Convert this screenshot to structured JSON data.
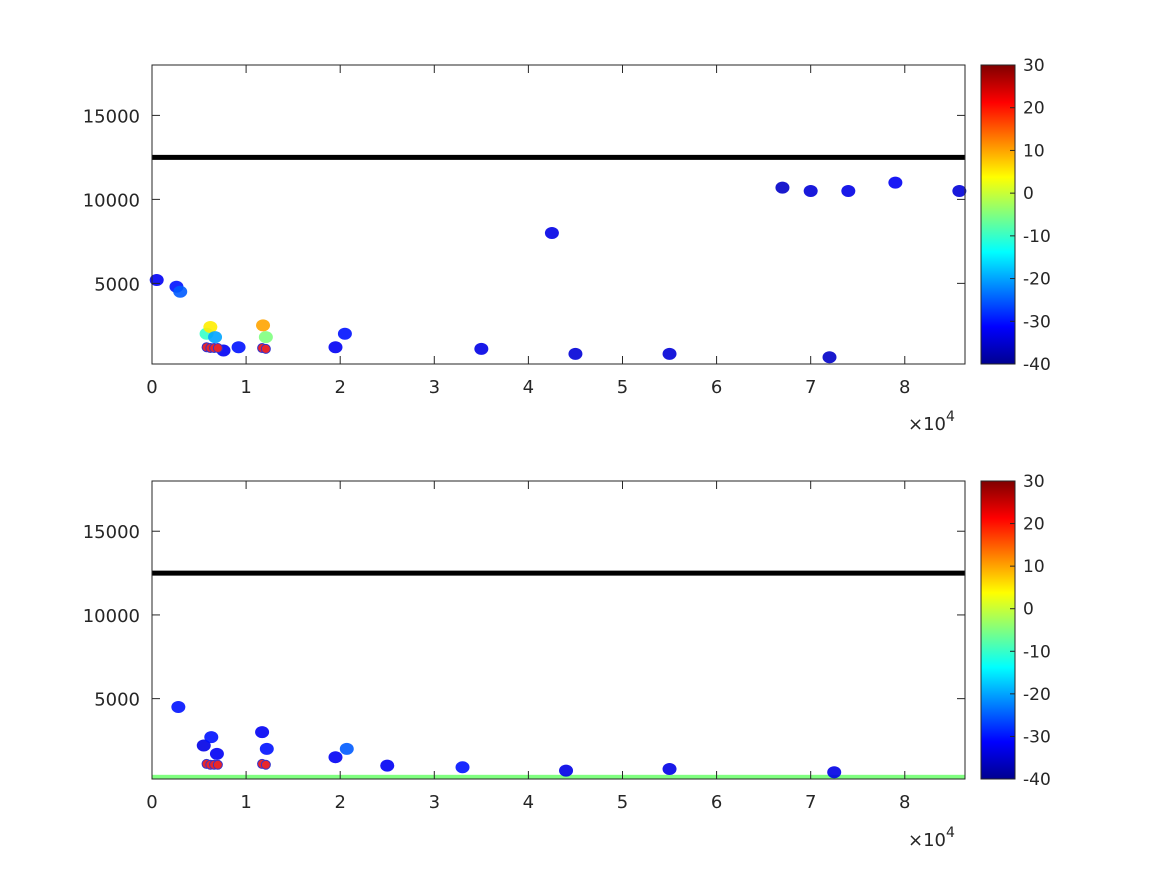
{
  "chart_data": [
    {
      "type": "heatmap",
      "panel": "top",
      "xlim": [
        0,
        86400
      ],
      "ylim": [
        200,
        18000
      ],
      "x_ticks": [
        "0",
        "1",
        "2",
        "3",
        "4",
        "5",
        "6",
        "7",
        "8"
      ],
      "x_tick_values": [
        0,
        10000,
        20000,
        30000,
        40000,
        50000,
        60000,
        70000,
        80000
      ],
      "x_exponent_label": "×10",
      "x_exponent_power": "4",
      "y_ticks": [
        "5000",
        "10000",
        "15000"
      ],
      "y_tick_values": [
        5000,
        10000,
        15000
      ],
      "colorbar": {
        "colormap": "jet",
        "clim": [
          -40,
          30
        ],
        "ticks": [
          "30",
          "20",
          "10",
          "0",
          "-10",
          "-20",
          "-30",
          "-40"
        ],
        "tick_values": [
          30,
          20,
          10,
          0,
          -10,
          -20,
          -30,
          -40
        ]
      },
      "reference_line": {
        "y": 12500,
        "color": "#000000"
      },
      "markers": [
        {
          "x": 5800,
          "y": 1200,
          "color": "#e8262b"
        },
        {
          "x": 6200,
          "y": 1150,
          "color": "#e8262b"
        },
        {
          "x": 6600,
          "y": 1150,
          "color": "#e8262b"
        },
        {
          "x": 7000,
          "y": 1150,
          "color": "#e8262b"
        },
        {
          "x": 11700,
          "y": 1150,
          "color": "#e8262b"
        },
        {
          "x": 12100,
          "y": 1100,
          "color": "#e8262b"
        }
      ],
      "echoes": [
        {
          "x": 500,
          "y": 5200,
          "value": -32
        },
        {
          "x": 2600,
          "y": 4800,
          "value": -30
        },
        {
          "x": 3000,
          "y": 4500,
          "value": -25
        },
        {
          "x": 5800,
          "y": 2000,
          "value": -10
        },
        {
          "x": 6200,
          "y": 2400,
          "value": 5
        },
        {
          "x": 6700,
          "y": 1800,
          "value": -20
        },
        {
          "x": 11800,
          "y": 2500,
          "value": 10
        },
        {
          "x": 12100,
          "y": 1800,
          "value": -5
        },
        {
          "x": 7600,
          "y": 1000,
          "value": -32
        },
        {
          "x": 9200,
          "y": 1200,
          "value": -30
        },
        {
          "x": 19500,
          "y": 1200,
          "value": -32
        },
        {
          "x": 20500,
          "y": 2000,
          "value": -30
        },
        {
          "x": 42500,
          "y": 8000,
          "value": -33
        },
        {
          "x": 35000,
          "y": 1100,
          "value": -33
        },
        {
          "x": 45000,
          "y": 800,
          "value": -34
        },
        {
          "x": 55000,
          "y": 800,
          "value": -34
        },
        {
          "x": 72000,
          "y": 600,
          "value": -35
        },
        {
          "x": 67000,
          "y": 10700,
          "value": -35
        },
        {
          "x": 70000,
          "y": 10500,
          "value": -34
        },
        {
          "x": 74000,
          "y": 10500,
          "value": -33
        },
        {
          "x": 79000,
          "y": 11000,
          "value": -32
        },
        {
          "x": 85800,
          "y": 10500,
          "value": -34
        }
      ]
    },
    {
      "type": "heatmap",
      "panel": "bottom",
      "xlim": [
        0,
        86400
      ],
      "ylim": [
        200,
        18000
      ],
      "x_ticks": [
        "0",
        "1",
        "2",
        "3",
        "4",
        "5",
        "6",
        "7",
        "8"
      ],
      "x_tick_values": [
        0,
        10000,
        20000,
        30000,
        40000,
        50000,
        60000,
        70000,
        80000
      ],
      "x_exponent_label": "×10",
      "x_exponent_power": "4",
      "y_ticks": [
        "5000",
        "10000",
        "15000"
      ],
      "y_tick_values": [
        5000,
        10000,
        15000
      ],
      "colorbar": {
        "colormap": "jet",
        "clim": [
          -40,
          30
        ],
        "ticks": [
          "30",
          "20",
          "10",
          "0",
          "-10",
          "-20",
          "-30",
          "-40"
        ],
        "tick_values": [
          30,
          20,
          10,
          0,
          -10,
          -20,
          -30,
          -40
        ]
      },
      "reference_line": {
        "y": 12500,
        "color": "#000000"
      },
      "surface_band": {
        "y_range": [
          200,
          450
        ],
        "value": -5
      },
      "markers": [
        {
          "x": 5800,
          "y": 1100,
          "color": "#e8262b"
        },
        {
          "x": 6200,
          "y": 1050,
          "color": "#e8262b"
        },
        {
          "x": 6600,
          "y": 1050,
          "color": "#e8262b"
        },
        {
          "x": 7000,
          "y": 1050,
          "color": "#e8262b"
        },
        {
          "x": 11700,
          "y": 1100,
          "color": "#e8262b"
        },
        {
          "x": 12100,
          "y": 1050,
          "color": "#e8262b"
        }
      ],
      "echoes": [
        {
          "x": 2800,
          "y": 4500,
          "value": -30
        },
        {
          "x": 5500,
          "y": 2200,
          "value": -33
        },
        {
          "x": 6300,
          "y": 2700,
          "value": -30
        },
        {
          "x": 6900,
          "y": 1700,
          "value": -32
        },
        {
          "x": 11700,
          "y": 3000,
          "value": -32
        },
        {
          "x": 12200,
          "y": 2000,
          "value": -30
        },
        {
          "x": 19500,
          "y": 1500,
          "value": -32
        },
        {
          "x": 20700,
          "y": 2000,
          "value": -25
        },
        {
          "x": 25000,
          "y": 1000,
          "value": -32
        },
        {
          "x": 33000,
          "y": 900,
          "value": -30
        },
        {
          "x": 44000,
          "y": 700,
          "value": -33
        },
        {
          "x": 55000,
          "y": 800,
          "value": -33
        },
        {
          "x": 72500,
          "y": 600,
          "value": -33
        }
      ]
    }
  ]
}
